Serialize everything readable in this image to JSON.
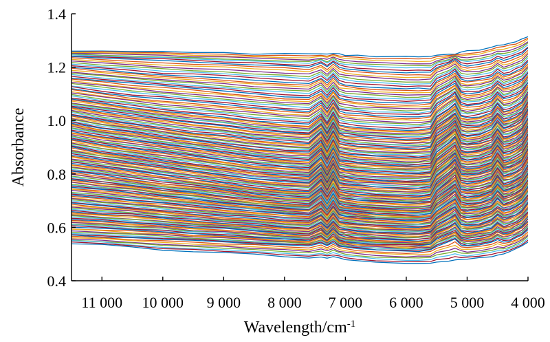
{
  "chart_data": {
    "type": "line",
    "xlabel": "Wavelength/cm",
    "xlabel_sup": "-1",
    "ylabel": "Absorbance",
    "xlim": [
      11500,
      4000
    ],
    "ylim": [
      0.4,
      1.4
    ],
    "x_reversed": true,
    "grid": false,
    "legend": "none",
    "x_ticks": [
      {
        "value": 11000,
        "label": "11 000"
      },
      {
        "value": 10000,
        "label": "10 000"
      },
      {
        "value": 9000,
        "label": "9 000"
      },
      {
        "value": 8000,
        "label": "8 000"
      },
      {
        "value": 7000,
        "label": "7 000"
      },
      {
        "value": 6000,
        "label": "6 000"
      },
      {
        "value": 5000,
        "label": "5 000"
      },
      {
        "value": 4000,
        "label": "4 000"
      }
    ],
    "y_ticks": [
      {
        "value": 0.4,
        "label": "0.4"
      },
      {
        "value": 0.6,
        "label": "0.6"
      },
      {
        "value": 0.8,
        "label": "0.8"
      },
      {
        "value": 1.0,
        "label": "1.0"
      },
      {
        "value": 1.2,
        "label": "1.2"
      },
      {
        "value": 1.4,
        "label": "1.4"
      }
    ],
    "colors": [
      "#0072BD",
      "#D95319",
      "#EDB120",
      "#7E2F8E",
      "#77AC30",
      "#4DBEEE",
      "#A2142F"
    ],
    "x": [
      11500,
      11000,
      10500,
      10000,
      9500,
      9000,
      8500,
      8000,
      7600,
      7400,
      7300,
      7200,
      7100,
      7000,
      6800,
      6500,
      6000,
      5800,
      5600,
      5500,
      5300,
      5200,
      5100,
      5000,
      4800,
      4600,
      4500,
      4400,
      4300,
      4200,
      4100,
      4000
    ],
    "series": [
      {
        "values": [
          1.26,
          1.26,
          1.26,
          1.26,
          1.255,
          1.255,
          1.25,
          1.25,
          1.25,
          1.25,
          1.25,
          1.25,
          1.25,
          1.245,
          1.245,
          1.24,
          1.24,
          1.24,
          1.24,
          1.245,
          1.25,
          1.25,
          1.255,
          1.26,
          1.265,
          1.275,
          1.28,
          1.285,
          1.29,
          1.295,
          1.305,
          1.315
        ]
      },
      {
        "values": [
          1.24,
          1.235,
          1.23,
          1.225,
          1.22,
          1.215,
          1.21,
          1.205,
          1.2,
          1.215,
          1.2,
          1.22,
          1.2,
          1.195,
          1.19,
          1.185,
          1.18,
          1.18,
          1.18,
          1.2,
          1.215,
          1.23,
          1.21,
          1.205,
          1.21,
          1.22,
          1.235,
          1.225,
          1.23,
          1.24,
          1.25,
          1.27
        ]
      },
      {
        "values": [
          1.2,
          1.19,
          1.18,
          1.17,
          1.165,
          1.16,
          1.15,
          1.145,
          1.14,
          1.16,
          1.14,
          1.165,
          1.14,
          1.135,
          1.13,
          1.125,
          1.12,
          1.12,
          1.12,
          1.15,
          1.17,
          1.185,
          1.155,
          1.15,
          1.155,
          1.165,
          1.185,
          1.17,
          1.175,
          1.185,
          1.195,
          1.22
        ]
      },
      {
        "values": [
          1.16,
          1.15,
          1.14,
          1.13,
          1.12,
          1.11,
          1.1,
          1.09,
          1.085,
          1.11,
          1.085,
          1.115,
          1.085,
          1.08,
          1.075,
          1.07,
          1.065,
          1.065,
          1.07,
          1.1,
          1.125,
          1.14,
          1.105,
          1.1,
          1.105,
          1.12,
          1.14,
          1.125,
          1.13,
          1.14,
          1.15,
          1.175
        ]
      },
      {
        "values": [
          1.12,
          1.105,
          1.09,
          1.08,
          1.07,
          1.06,
          1.05,
          1.04,
          1.035,
          1.065,
          1.035,
          1.07,
          1.035,
          1.03,
          1.025,
          1.02,
          1.015,
          1.015,
          1.02,
          1.055,
          1.085,
          1.1,
          1.06,
          1.055,
          1.06,
          1.075,
          1.1,
          1.08,
          1.085,
          1.095,
          1.11,
          1.14
        ]
      },
      {
        "values": [
          1.08,
          1.065,
          1.05,
          1.035,
          1.025,
          1.015,
          1.0,
          0.99,
          0.985,
          1.02,
          0.985,
          1.025,
          0.985,
          0.98,
          0.975,
          0.97,
          0.965,
          0.965,
          0.97,
          1.01,
          1.04,
          1.06,
          1.015,
          1.01,
          1.015,
          1.03,
          1.06,
          1.035,
          1.04,
          1.05,
          1.065,
          1.1
        ]
      },
      {
        "values": [
          1.05,
          1.035,
          1.02,
          1.005,
          0.99,
          0.98,
          0.965,
          0.955,
          0.95,
          0.985,
          0.95,
          0.99,
          0.95,
          0.945,
          0.94,
          0.935,
          0.93,
          0.93,
          0.935,
          0.975,
          1.005,
          1.025,
          0.98,
          0.975,
          0.98,
          0.995,
          1.025,
          1.0,
          1.005,
          1.015,
          1.03,
          1.065
        ]
      },
      {
        "values": [
          1.02,
          1.0,
          0.985,
          0.97,
          0.955,
          0.945,
          0.93,
          0.92,
          0.915,
          0.955,
          0.915,
          0.96,
          0.915,
          0.91,
          0.905,
          0.9,
          0.895,
          0.895,
          0.9,
          0.945,
          0.975,
          0.995,
          0.945,
          0.94,
          0.945,
          0.965,
          0.995,
          0.97,
          0.975,
          0.985,
          1.0,
          1.04
        ]
      },
      {
        "values": [
          0.99,
          0.97,
          0.955,
          0.94,
          0.925,
          0.91,
          0.895,
          0.885,
          0.88,
          0.92,
          0.88,
          0.925,
          0.88,
          0.875,
          0.87,
          0.865,
          0.86,
          0.86,
          0.865,
          0.91,
          0.945,
          0.965,
          0.915,
          0.91,
          0.915,
          0.93,
          0.965,
          0.935,
          0.94,
          0.95,
          0.965,
          1.005
        ]
      },
      {
        "values": [
          0.96,
          0.94,
          0.925,
          0.91,
          0.895,
          0.88,
          0.865,
          0.855,
          0.85,
          0.89,
          0.85,
          0.895,
          0.85,
          0.845,
          0.84,
          0.835,
          0.83,
          0.83,
          0.835,
          0.88,
          0.915,
          0.935,
          0.885,
          0.88,
          0.885,
          0.9,
          0.935,
          0.905,
          0.91,
          0.92,
          0.935,
          0.975
        ]
      },
      {
        "values": [
          0.93,
          0.91,
          0.895,
          0.88,
          0.865,
          0.85,
          0.835,
          0.825,
          0.82,
          0.86,
          0.82,
          0.865,
          0.82,
          0.815,
          0.81,
          0.805,
          0.8,
          0.8,
          0.805,
          0.85,
          0.885,
          0.905,
          0.855,
          0.85,
          0.855,
          0.87,
          0.905,
          0.875,
          0.88,
          0.89,
          0.905,
          0.945
        ]
      },
      {
        "values": [
          0.9,
          0.88,
          0.865,
          0.85,
          0.835,
          0.82,
          0.805,
          0.795,
          0.79,
          0.83,
          0.79,
          0.835,
          0.79,
          0.785,
          0.78,
          0.775,
          0.77,
          0.77,
          0.775,
          0.82,
          0.855,
          0.875,
          0.825,
          0.82,
          0.825,
          0.84,
          0.875,
          0.845,
          0.85,
          0.86,
          0.875,
          0.915
        ]
      },
      {
        "values": [
          0.87,
          0.855,
          0.84,
          0.825,
          0.81,
          0.795,
          0.78,
          0.77,
          0.765,
          0.805,
          0.765,
          0.81,
          0.765,
          0.76,
          0.755,
          0.75,
          0.745,
          0.745,
          0.75,
          0.795,
          0.83,
          0.85,
          0.8,
          0.795,
          0.8,
          0.815,
          0.85,
          0.82,
          0.825,
          0.835,
          0.85,
          0.89
        ]
      },
      {
        "values": [
          0.84,
          0.825,
          0.81,
          0.795,
          0.78,
          0.765,
          0.75,
          0.74,
          0.735,
          0.775,
          0.735,
          0.78,
          0.735,
          0.73,
          0.725,
          0.72,
          0.715,
          0.715,
          0.72,
          0.765,
          0.8,
          0.82,
          0.77,
          0.765,
          0.77,
          0.785,
          0.82,
          0.79,
          0.795,
          0.805,
          0.82,
          0.86
        ]
      },
      {
        "values": [
          0.81,
          0.795,
          0.78,
          0.765,
          0.755,
          0.74,
          0.725,
          0.715,
          0.71,
          0.745,
          0.71,
          0.75,
          0.71,
          0.705,
          0.7,
          0.695,
          0.69,
          0.69,
          0.695,
          0.735,
          0.77,
          0.79,
          0.74,
          0.735,
          0.74,
          0.755,
          0.79,
          0.76,
          0.765,
          0.775,
          0.79,
          0.83
        ]
      },
      {
        "values": [
          0.78,
          0.765,
          0.755,
          0.74,
          0.73,
          0.715,
          0.7,
          0.69,
          0.685,
          0.72,
          0.685,
          0.725,
          0.685,
          0.68,
          0.675,
          0.67,
          0.665,
          0.665,
          0.67,
          0.71,
          0.74,
          0.76,
          0.715,
          0.71,
          0.715,
          0.73,
          0.76,
          0.735,
          0.74,
          0.75,
          0.765,
          0.8
        ]
      },
      {
        "values": [
          0.75,
          0.74,
          0.73,
          0.715,
          0.705,
          0.69,
          0.68,
          0.67,
          0.665,
          0.695,
          0.665,
          0.7,
          0.665,
          0.66,
          0.655,
          0.65,
          0.645,
          0.645,
          0.65,
          0.685,
          0.715,
          0.735,
          0.69,
          0.685,
          0.69,
          0.705,
          0.735,
          0.71,
          0.715,
          0.725,
          0.74,
          0.775
        ]
      },
      {
        "values": [
          0.72,
          0.71,
          0.7,
          0.69,
          0.68,
          0.67,
          0.66,
          0.65,
          0.645,
          0.67,
          0.645,
          0.675,
          0.645,
          0.64,
          0.635,
          0.63,
          0.625,
          0.625,
          0.63,
          0.66,
          0.69,
          0.705,
          0.665,
          0.66,
          0.665,
          0.68,
          0.705,
          0.685,
          0.69,
          0.7,
          0.715,
          0.75
        ]
      },
      {
        "values": [
          0.69,
          0.68,
          0.67,
          0.66,
          0.65,
          0.64,
          0.635,
          0.625,
          0.62,
          0.645,
          0.62,
          0.65,
          0.62,
          0.615,
          0.61,
          0.605,
          0.6,
          0.6,
          0.605,
          0.635,
          0.66,
          0.675,
          0.64,
          0.635,
          0.64,
          0.655,
          0.675,
          0.66,
          0.665,
          0.675,
          0.69,
          0.72
        ]
      },
      {
        "values": [
          0.66,
          0.65,
          0.645,
          0.635,
          0.625,
          0.615,
          0.61,
          0.6,
          0.595,
          0.615,
          0.595,
          0.62,
          0.595,
          0.59,
          0.585,
          0.58,
          0.575,
          0.575,
          0.58,
          0.605,
          0.63,
          0.645,
          0.61,
          0.605,
          0.61,
          0.625,
          0.645,
          0.63,
          0.635,
          0.645,
          0.66,
          0.69
        ]
      },
      {
        "values": [
          0.63,
          0.625,
          0.615,
          0.61,
          0.6,
          0.595,
          0.585,
          0.575,
          0.57,
          0.59,
          0.57,
          0.595,
          0.57,
          0.565,
          0.56,
          0.555,
          0.55,
          0.55,
          0.555,
          0.58,
          0.6,
          0.615,
          0.585,
          0.58,
          0.585,
          0.595,
          0.615,
          0.6,
          0.605,
          0.615,
          0.63,
          0.655
        ]
      },
      {
        "values": [
          0.6,
          0.595,
          0.59,
          0.585,
          0.575,
          0.57,
          0.56,
          0.555,
          0.55,
          0.565,
          0.55,
          0.57,
          0.55,
          0.545,
          0.54,
          0.535,
          0.53,
          0.53,
          0.535,
          0.555,
          0.575,
          0.585,
          0.56,
          0.555,
          0.56,
          0.57,
          0.585,
          0.575,
          0.58,
          0.59,
          0.6,
          0.625
        ]
      },
      {
        "values": [
          0.57,
          0.565,
          0.56,
          0.555,
          0.55,
          0.545,
          0.54,
          0.535,
          0.53,
          0.54,
          0.53,
          0.545,
          0.53,
          0.525,
          0.52,
          0.515,
          0.51,
          0.51,
          0.515,
          0.53,
          0.545,
          0.555,
          0.535,
          0.53,
          0.535,
          0.545,
          0.555,
          0.545,
          0.55,
          0.56,
          0.57,
          0.59
        ]
      },
      {
        "values": [
          0.54,
          0.535,
          0.525,
          0.515,
          0.51,
          0.505,
          0.5,
          0.49,
          0.485,
          0.49,
          0.485,
          0.49,
          0.485,
          0.48,
          0.475,
          0.47,
          0.465,
          0.465,
          0.465,
          0.47,
          0.475,
          0.48,
          0.48,
          0.48,
          0.485,
          0.49,
          0.495,
          0.5,
          0.51,
          0.52,
          0.53,
          0.545
        ]
      }
    ]
  }
}
